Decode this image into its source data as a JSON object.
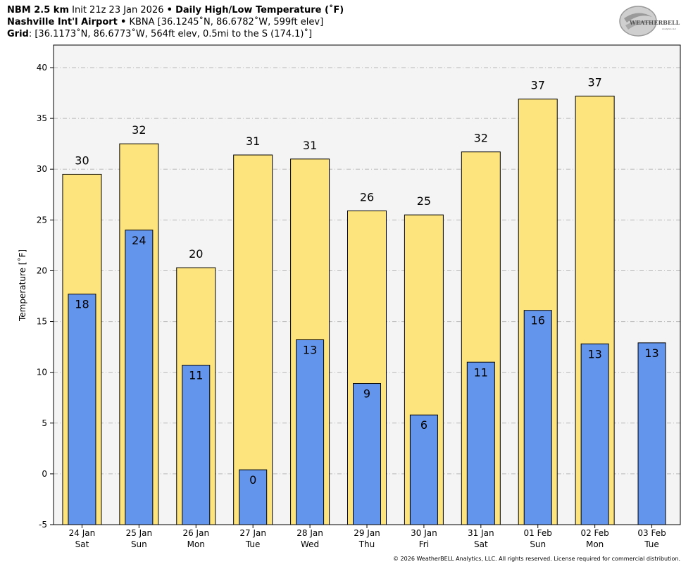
{
  "header": {
    "model": "NBM 2.5 km",
    "init": "Init 21z 23 Jan 2026",
    "sep": "•",
    "product": "Daily High/Low Temperature (˚F)",
    "station_name": "Nashville Int'l Airport",
    "station_info": "KBNA [36.1245˚N, 86.6782˚W, 599ft elev]",
    "grid_label": "Grid",
    "grid_info": ": [36.1173˚N, 86.6773˚W, 564ft elev, 0.5mi to the S (174.1)˚]"
  },
  "logo": {
    "text_main": "WEATHERBELL",
    "text_sub": "Analytics LLC"
  },
  "copyright": "© 2026 WeatherBELL Analytics, LLC. All rights reserved. License required for commercial distribution.",
  "colors": {
    "high": "#fee47c",
    "low": "#6495ed",
    "plot_bg": "#f4f4f4",
    "grid": "#b8b8b8"
  },
  "chart_data": {
    "type": "bar",
    "title": "Daily High/Low Temperature (˚F)",
    "ylabel": "Temperature [˚F]",
    "ylim": [
      -5,
      40
    ],
    "yticks": [
      -5,
      0,
      5,
      10,
      15,
      20,
      25,
      30,
      35,
      40
    ],
    "grid": true,
    "categories": [
      {
        "date": "24 Jan",
        "dow": "Sat"
      },
      {
        "date": "25 Jan",
        "dow": "Sun"
      },
      {
        "date": "26 Jan",
        "dow": "Mon"
      },
      {
        "date": "27 Jan",
        "dow": "Tue"
      },
      {
        "date": "28 Jan",
        "dow": "Wed"
      },
      {
        "date": "29 Jan",
        "dow": "Thu"
      },
      {
        "date": "30 Jan",
        "dow": "Fri"
      },
      {
        "date": "31 Jan",
        "dow": "Sat"
      },
      {
        "date": "01 Feb",
        "dow": "Sun"
      },
      {
        "date": "02 Feb",
        "dow": "Mon"
      },
      {
        "date": "03 Feb",
        "dow": "Tue"
      }
    ],
    "high": {
      "values": [
        29.5,
        32.5,
        20.3,
        31.4,
        31.0,
        25.9,
        25.5,
        31.7,
        36.9,
        37.2,
        null
      ],
      "labels": [
        "30",
        "32",
        "20",
        "31",
        "31",
        "26",
        "25",
        "32",
        "37",
        "37",
        ""
      ]
    },
    "low": {
      "values": [
        17.7,
        24.0,
        10.7,
        0.4,
        13.2,
        8.9,
        5.8,
        11.0,
        16.1,
        12.8,
        12.9
      ],
      "labels": [
        "18",
        "24",
        "11",
        "0",
        "13",
        "9",
        "6",
        "11",
        "16",
        "13",
        "13"
      ]
    }
  }
}
